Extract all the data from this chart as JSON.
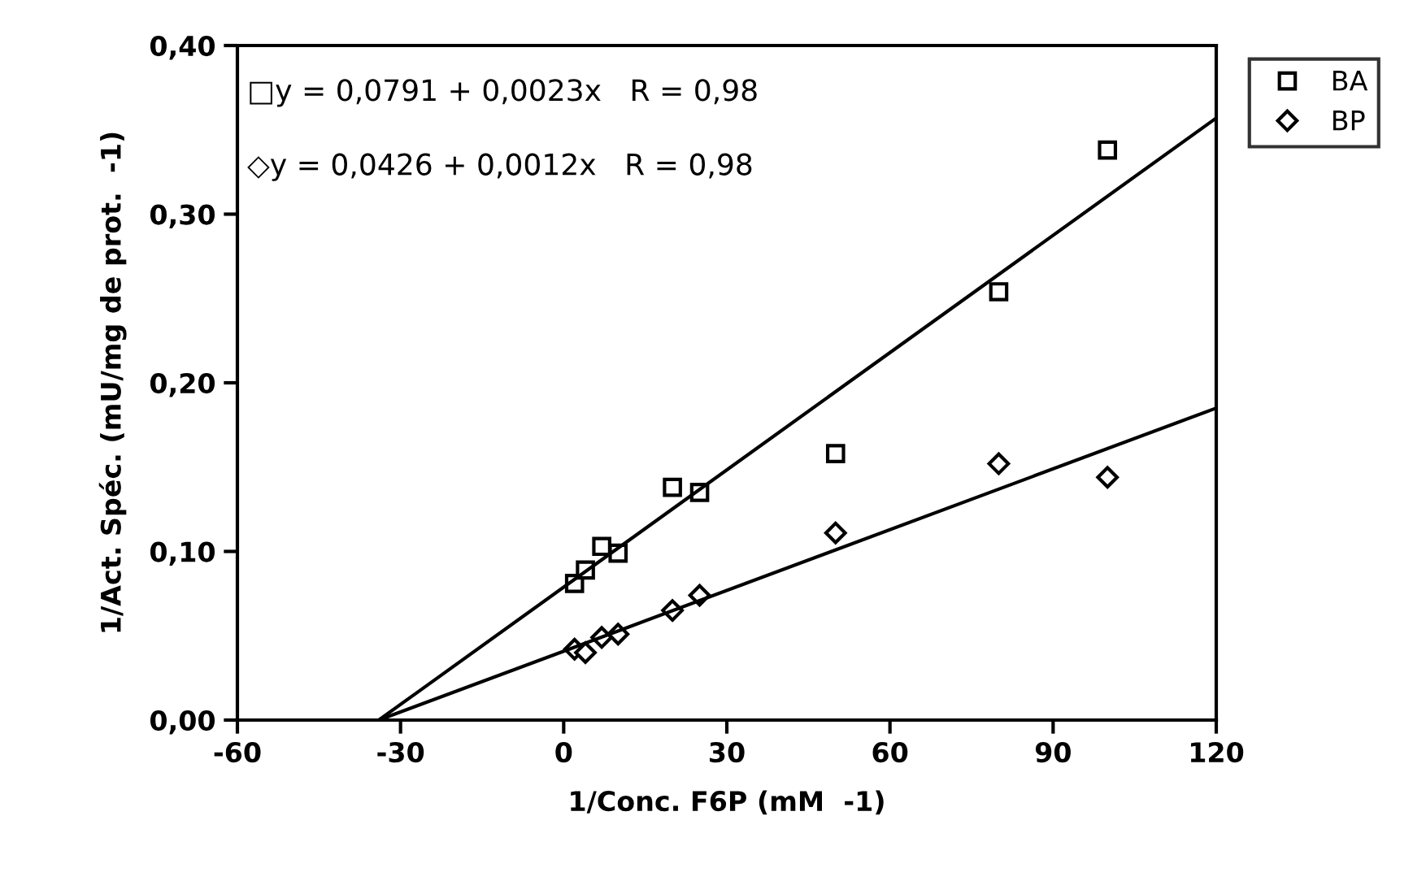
{
  "chart_data": {
    "type": "scatter",
    "xlabel": "1/Conc. F6P (mM  -1)",
    "ylabel": "1/Act. Spéc. (mU/mg de prot.  -1)",
    "annotations": [
      "□y = 0,0791 + 0,0023x   R = 0,98",
      "◇y = 0,0426 + 0,0012x   R = 0,98"
    ],
    "series": [
      {
        "name": "BA",
        "marker": "square",
        "color": "#000000",
        "x": [
          2,
          4,
          7,
          10,
          20,
          25,
          50,
          80,
          100
        ],
        "values": [
          0.081,
          0.089,
          0.103,
          0.099,
          0.138,
          0.135,
          0.158,
          0.254,
          0.338
        ]
      },
      {
        "name": "BP",
        "marker": "diamond",
        "color": "#000000",
        "x": [
          2,
          4,
          7,
          10,
          20,
          25,
          50,
          80,
          100
        ],
        "values": [
          0.042,
          0.04,
          0.049,
          0.051,
          0.065,
          0.074,
          0.111,
          0.152,
          0.144
        ]
      },
      {
        "type": "line",
        "marker": "none",
        "line_style": "solid",
        "color": "#000000",
        "x": [
          -34,
          120
        ],
        "values": [
          0,
          0.357
        ]
      },
      {
        "type": "line",
        "marker": "none",
        "line_style": "solid",
        "color": "#000000",
        "x": [
          -34,
          120
        ],
        "values": [
          0,
          0.185
        ]
      }
    ],
    "xlim": [
      -60,
      120
    ],
    "xticks": [
      -60,
      -30,
      0,
      30,
      60,
      90,
      120
    ],
    "ylim": [
      0,
      0.4
    ],
    "yticks": [
      {
        "value": 0,
        "label": "0,00"
      },
      {
        "value": 0.1,
        "label": "0,10"
      },
      {
        "value": 0.2,
        "label": "0,20"
      },
      {
        "value": 0.3,
        "label": "0,30"
      },
      {
        "value": 0.4,
        "label": "0,40"
      }
    ],
    "grid": false,
    "legend": "right"
  }
}
